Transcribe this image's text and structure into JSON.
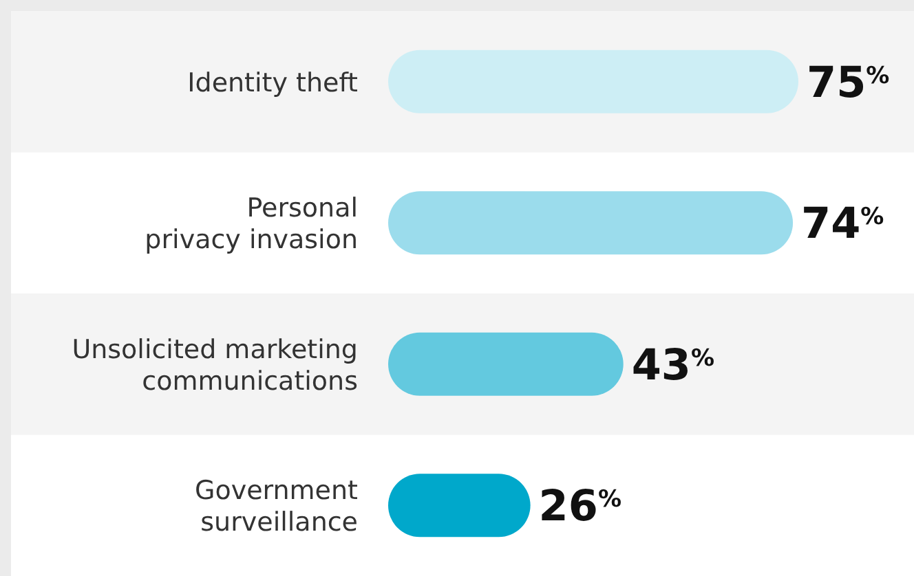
{
  "chart_data": {
    "type": "bar",
    "orientation": "horizontal",
    "categories": [
      "Identity theft",
      "Personal\nprivacy invasion",
      "Unsolicited marketing\ncommunications",
      "Government\nsurveillance"
    ],
    "values": [
      75,
      74,
      43,
      26
    ],
    "colors": [
      "#cdeef5",
      "#9bdcec",
      "#63c9df",
      "#00a8cb"
    ],
    "value_labels": [
      "75$^{%}$",
      "74$^{%}$",
      "43$^{%}$",
      "26$^{%}$"
    ]
  }
}
